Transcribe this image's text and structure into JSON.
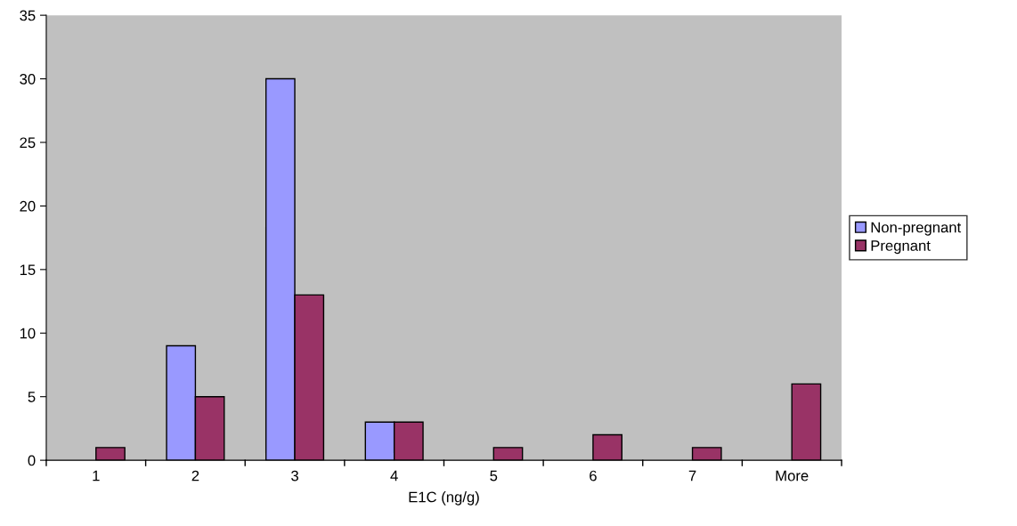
{
  "chart_data": {
    "type": "bar",
    "xlabel": "E1C (ng/g)",
    "categories": [
      "1",
      "2",
      "3",
      "4",
      "5",
      "6",
      "7",
      "More"
    ],
    "series": [
      {
        "name": "Non-pregnant",
        "color": "#9999ff",
        "values": [
          0,
          9,
          30,
          3,
          0,
          0,
          0,
          0
        ]
      },
      {
        "name": "Pregnant",
        "color": "#993366",
        "values": [
          1,
          5,
          13,
          3,
          1,
          2,
          1,
          6
        ]
      }
    ],
    "ylim": [
      0,
      35
    ],
    "yticks": [
      0,
      5,
      10,
      15,
      20,
      25,
      30,
      35
    ],
    "grid": false,
    "legend": "right"
  }
}
